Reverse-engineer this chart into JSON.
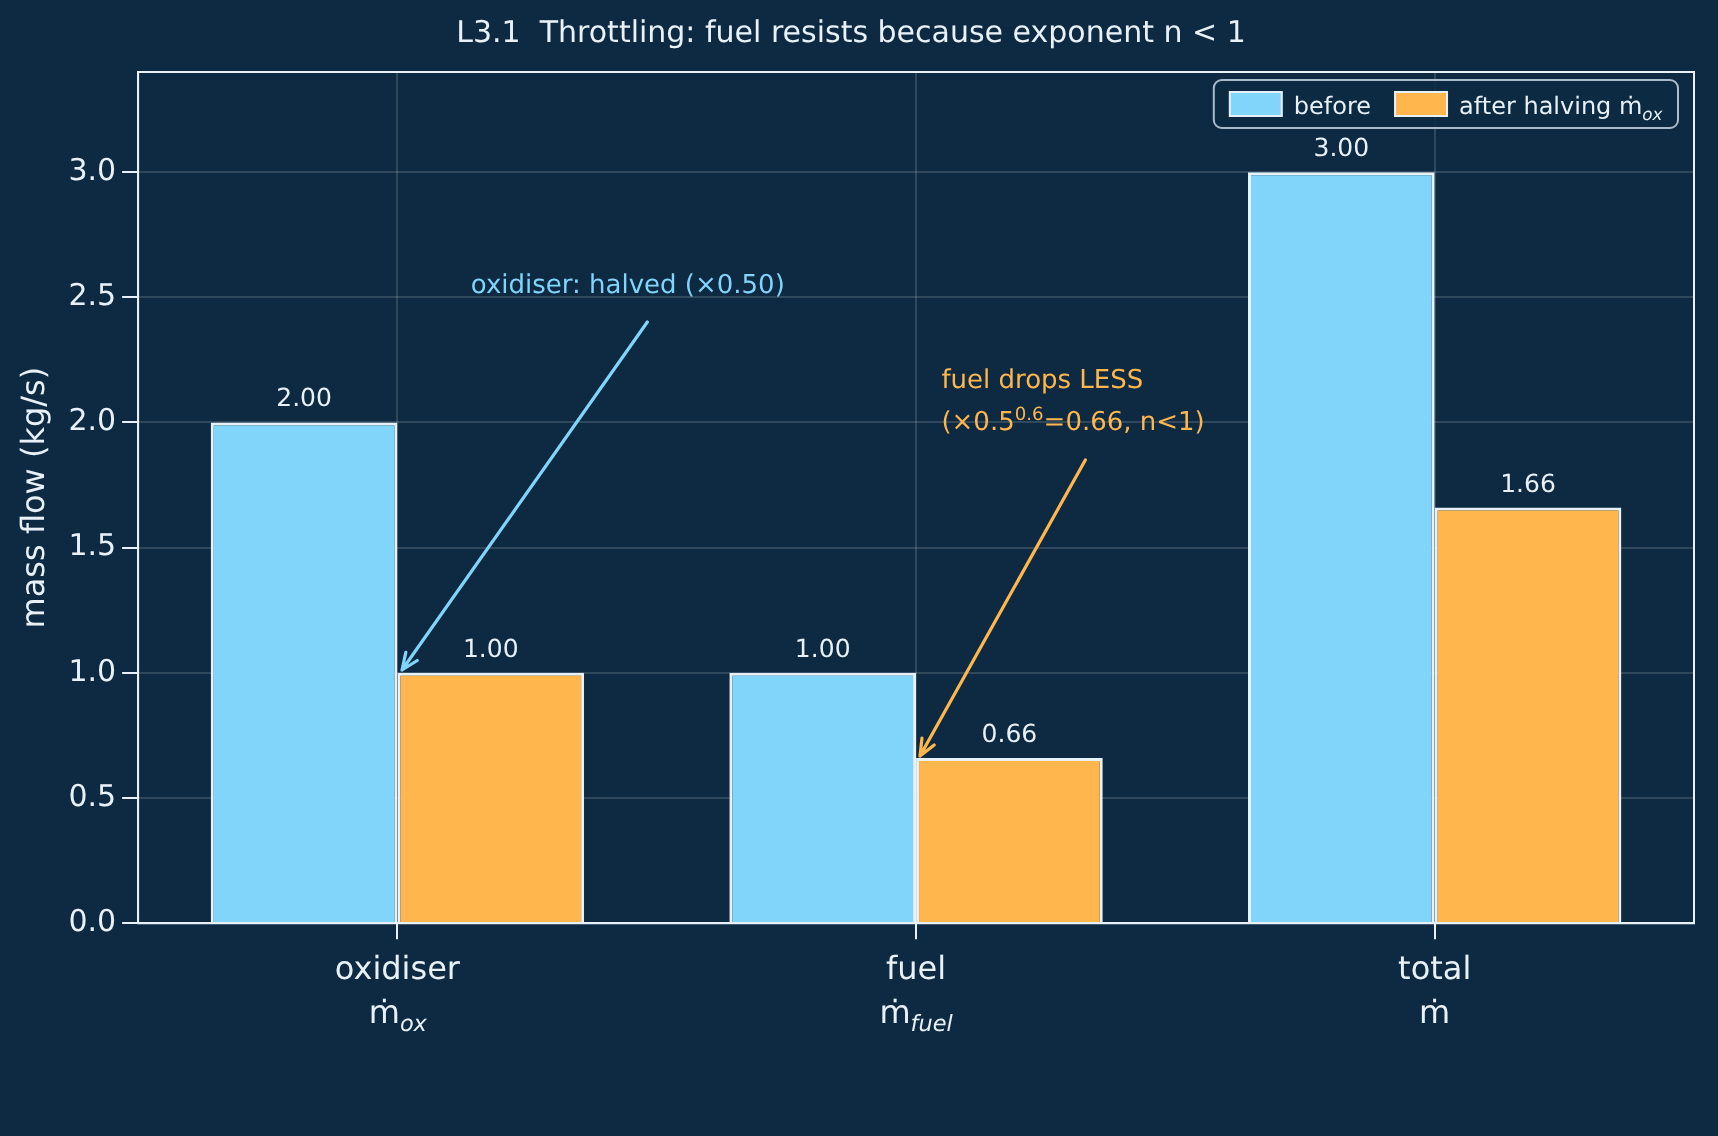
{
  "chart_data": {
    "type": "bar",
    "title": "L3.1  Throttling: fuel resists because exponent n < 1",
    "ylabel": "mass flow (kg/s)",
    "categories": [
      "oxidiser\nṁ$_{ox}$",
      "fuel\nṁ$_{fuel}$",
      "total\nṁ"
    ],
    "series": [
      {
        "name": "before",
        "color": "#81d4fa",
        "values": [
          2.0,
          1.0,
          3.0
        ],
        "value_labels": [
          "2.00",
          "1.00",
          "3.00"
        ]
      },
      {
        "name": "after halving ṁ$_{ox}$",
        "color": "#ffb74d",
        "values": [
          1.0,
          0.66,
          1.66
        ],
        "value_labels": [
          "1.00",
          "0.66",
          "1.66"
        ]
      }
    ],
    "ylim": [
      0,
      3.4
    ],
    "yticks": [
      {
        "value": 0,
        "label": "0.0"
      },
      {
        "value": 0.5,
        "label": "0.5"
      },
      {
        "value": 1,
        "label": "1.0"
      },
      {
        "value": 1.5,
        "label": "1.5"
      },
      {
        "value": 2,
        "label": "2.0"
      },
      {
        "value": 2.5,
        "label": "2.5"
      },
      {
        "value": 3,
        "label": "3.0"
      }
    ],
    "grid": true,
    "legend": "top right",
    "annotations": [
      {
        "text": "oxidiser: halved (×0.50)",
        "x": "oxidiser\nṁ$_{ox}$",
        "y": 1.0
      },
      {
        "text": "fuel drops LESS\n(×0.5$^{0.6}$=0.66, n<1)",
        "x": "fuel\nṁ$_{fuel}$",
        "y": 0.66
      }
    ]
  }
}
